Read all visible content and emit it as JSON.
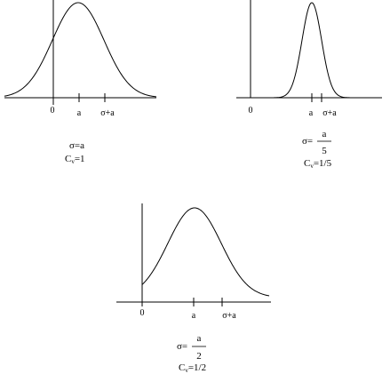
{
  "panels": [
    {
      "id": "left",
      "ticks": {
        "zero": "0",
        "a": "a",
        "sigma_plus_a": "σ+a"
      },
      "sigma": {
        "lhs": "σ=",
        "value": "a"
      },
      "cv": {
        "prefix": "C",
        "sub": "v",
        "rest": "=1"
      }
    },
    {
      "id": "right",
      "ticks": {
        "zero": "0",
        "a": "a",
        "sigma_plus_a": "σ+a"
      },
      "sigma": {
        "lhs": "σ=",
        "numerator": "a",
        "denominator": "5"
      },
      "cv": {
        "prefix": "C",
        "sub": "v",
        "rest": "=1/5"
      }
    },
    {
      "id": "bottom",
      "ticks": {
        "zero": "0",
        "a": "a",
        "sigma_plus_a": "σ+a"
      },
      "sigma": {
        "lhs": "σ=",
        "numerator": "a",
        "denominator": "2"
      },
      "cv": {
        "prefix": "C",
        "sub": "v",
        "rest": "=1/2"
      }
    }
  ]
}
